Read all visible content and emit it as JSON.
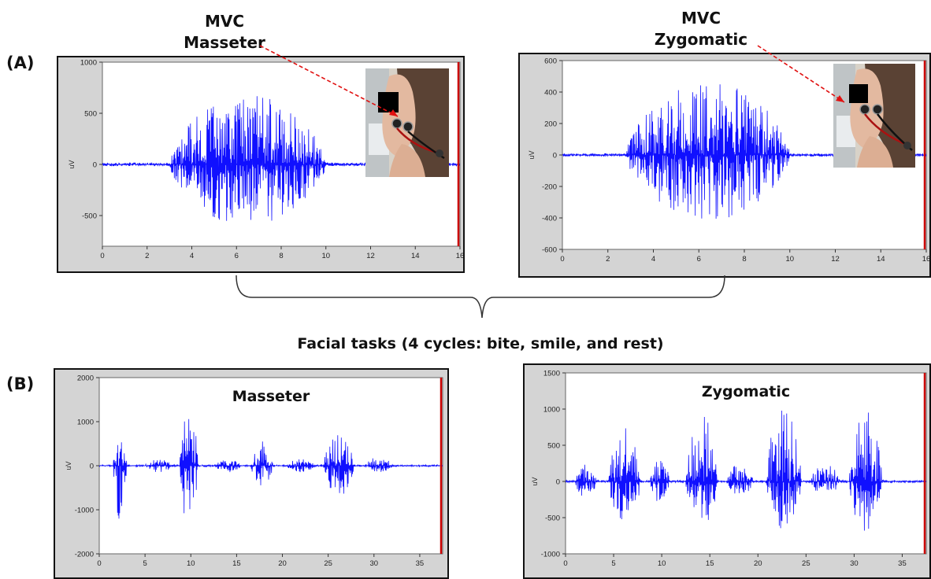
{
  "panels": {
    "a": "(A)",
    "b": "(B)"
  },
  "labels": {
    "mvc_masseter_line1": "MVC",
    "mvc_masseter_line2": "Masseter",
    "mvc_zygomatic_line1": "MVC",
    "mvc_zygomatic_line2": "Zygomatic",
    "facial_tasks": "Facial tasks  (4 cycles: bite, smile, and rest)"
  },
  "colors": {
    "signal": "#1010ff",
    "plot_bg": "#ffffff",
    "frame_bg": "#d4d4d4",
    "marker": "#cc0000",
    "pointer": "#e01010"
  },
  "chart_data": [
    {
      "id": "mvc_masseter",
      "type": "line",
      "title": "",
      "xlabel": "",
      "ylabel": "uV",
      "xlim": [
        0,
        16
      ],
      "ylim": [
        -800,
        1000
      ],
      "xticks": [
        0,
        2,
        4,
        6,
        8,
        10,
        12,
        14,
        16
      ],
      "xtick_labels": [
        "0",
        "2",
        "4",
        "6",
        "8",
        "10",
        "12",
        "14",
        "16"
      ],
      "yticks": [
        -500,
        0,
        500,
        1000
      ],
      "grid": false,
      "series": [
        {
          "bursts": [
            {
              "start": 3.0,
              "end": 10.0,
              "peak_pos": 700,
              "peak_neg": -600
            }
          ],
          "baseline_amp": 18
        }
      ],
      "photo": "face-electrodes-masseter"
    },
    {
      "id": "mvc_zygomatic",
      "type": "line",
      "title": "",
      "xlabel": "",
      "ylabel": "uV",
      "xlim": [
        0,
        16
      ],
      "ylim": [
        -600,
        600
      ],
      "xticks": [
        0,
        2,
        4,
        6,
        8,
        10,
        12,
        14,
        16
      ],
      "xtick_labels": [
        "0",
        "2",
        "4",
        "6",
        "8",
        "10",
        "12",
        "14",
        "16"
      ],
      "yticks": [
        -600,
        -400,
        -200,
        0,
        200,
        400,
        600
      ],
      "grid": false,
      "series": [
        {
          "bursts": [
            {
              "start": 2.8,
              "end": 10.0,
              "peak_pos": 480,
              "peak_neg": -420
            }
          ],
          "baseline_amp": 10
        }
      ],
      "photo": "face-electrodes-zygomatic"
    },
    {
      "id": "task_masseter",
      "type": "line",
      "title": "Masseter",
      "xlabel": "",
      "ylabel": "uV",
      "xlim": [
        0,
        37.5
      ],
      "ylim": [
        -2000,
        2000
      ],
      "xticks": [
        0,
        5,
        10,
        15,
        20,
        25,
        30,
        35
      ],
      "xtick_labels": [
        "0",
        "5",
        "10",
        "15",
        "20",
        "25",
        "30",
        "35"
      ],
      "yticks": [
        -2000,
        -1000,
        0,
        1000,
        2000
      ],
      "grid": false,
      "series": [
        {
          "bursts": [
            {
              "start": 1.5,
              "end": 3.0,
              "peak_pos": 900,
              "peak_neg": -1250
            },
            {
              "start": 5.0,
              "end": 8.0,
              "peak_pos": 150,
              "peak_neg": -150
            },
            {
              "start": 8.8,
              "end": 10.8,
              "peak_pos": 1300,
              "peak_neg": -1450
            },
            {
              "start": 12.5,
              "end": 15.5,
              "peak_pos": 150,
              "peak_neg": -150
            },
            {
              "start": 16.5,
              "end": 19.0,
              "peak_pos": 550,
              "peak_neg": -450
            },
            {
              "start": 20.5,
              "end": 23.5,
              "peak_pos": 150,
              "peak_neg": -150
            },
            {
              "start": 24.5,
              "end": 27.8,
              "peak_pos": 700,
              "peak_neg": -700
            },
            {
              "start": 29.0,
              "end": 32.0,
              "peak_pos": 200,
              "peak_neg": -150
            }
          ],
          "baseline_amp": 20
        }
      ]
    },
    {
      "id": "task_zygomatic",
      "type": "line",
      "title": "Zygomatic",
      "xlabel": "",
      "ylabel": "uV",
      "xlim": [
        0,
        37.5
      ],
      "ylim": [
        -1000,
        1500
      ],
      "xticks": [
        0,
        5,
        10,
        15,
        20,
        25,
        30,
        35
      ],
      "xtick_labels": [
        "0",
        "5",
        "10",
        "15",
        "20",
        "25",
        "30",
        "35"
      ],
      "yticks": [
        -1000,
        -500,
        0,
        500,
        1000,
        1500
      ],
      "grid": false,
      "series": [
        {
          "bursts": [
            {
              "start": 1.0,
              "end": 3.2,
              "peak_pos": 250,
              "peak_neg": -250
            },
            {
              "start": 4.5,
              "end": 7.8,
              "peak_pos": 780,
              "peak_neg": -600
            },
            {
              "start": 8.8,
              "end": 10.8,
              "peak_pos": 350,
              "peak_neg": -300
            },
            {
              "start": 12.5,
              "end": 15.8,
              "peak_pos": 920,
              "peak_neg": -650
            },
            {
              "start": 16.8,
              "end": 19.5,
              "peak_pos": 250,
              "peak_neg": -200
            },
            {
              "start": 20.8,
              "end": 24.5,
              "peak_pos": 1000,
              "peak_neg": -700
            },
            {
              "start": 25.5,
              "end": 28.5,
              "peak_pos": 250,
              "peak_neg": -200
            },
            {
              "start": 29.5,
              "end": 33.0,
              "peak_pos": 1000,
              "peak_neg": -700
            }
          ],
          "baseline_amp": 15
        }
      ]
    }
  ]
}
